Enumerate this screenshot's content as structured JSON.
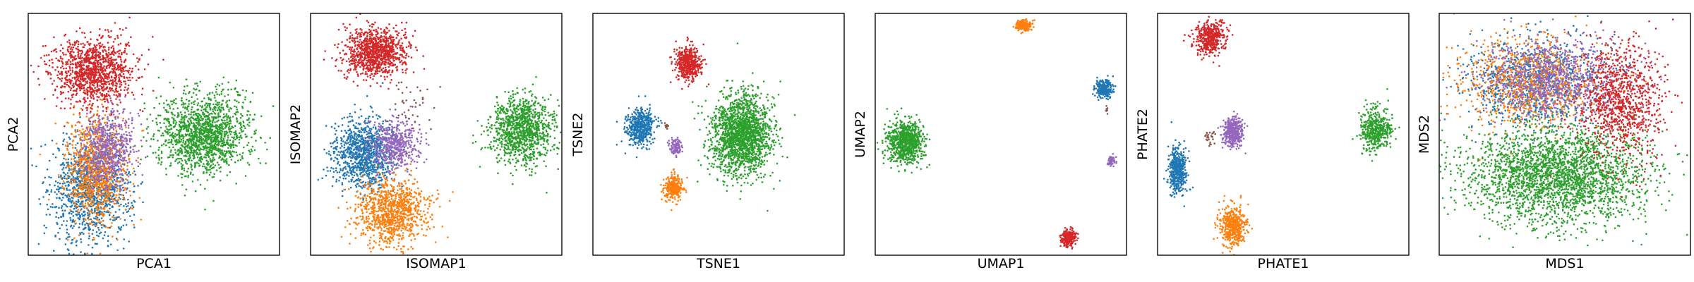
{
  "chart_data": [
    {
      "type": "scatter",
      "xlabel": "PCA1",
      "ylabel": "PCA2",
      "grid": false,
      "legend": "none",
      "clusters": [
        {
          "color": "#1f77b4",
          "center": [
            0.25,
            0.27
          ],
          "spread": [
            0.08,
            0.11
          ],
          "points": 1150
        },
        {
          "color": "#ff7f0e",
          "center": [
            0.27,
            0.36
          ],
          "spread": [
            0.06,
            0.11
          ],
          "points": 950
        },
        {
          "color": "#9467bd",
          "center": [
            0.32,
            0.44
          ],
          "spread": [
            0.05,
            0.09
          ],
          "points": 600
        },
        {
          "color": "#2ca02c",
          "center": [
            0.7,
            0.5
          ],
          "spread": [
            0.09,
            0.08
          ],
          "points": 1500
        },
        {
          "color": "#d62728",
          "center": [
            0.26,
            0.76
          ],
          "spread": [
            0.08,
            0.07
          ],
          "points": 1150
        }
      ]
    },
    {
      "type": "scatter",
      "xlabel": "ISOMAP1",
      "ylabel": "ISOMAP2",
      "grid": false,
      "legend": "none",
      "clusters": [
        {
          "color": "#d62728",
          "center": [
            0.26,
            0.84
          ],
          "spread": [
            0.06,
            0.05
          ],
          "points": 1000
        },
        {
          "color": "#1f77b4",
          "center": [
            0.21,
            0.42
          ],
          "spread": [
            0.06,
            0.07
          ],
          "points": 1000
        },
        {
          "color": "#9467bd",
          "center": [
            0.33,
            0.46
          ],
          "spread": [
            0.05,
            0.05
          ],
          "points": 500
        },
        {
          "color": "#ff7f0e",
          "center": [
            0.32,
            0.18
          ],
          "spread": [
            0.07,
            0.07
          ],
          "points": 1000
        },
        {
          "color": "#2ca02c",
          "center": [
            0.84,
            0.52
          ],
          "spread": [
            0.06,
            0.07
          ],
          "points": 1100
        },
        {
          "color": "#8c564b",
          "center": [
            0.4,
            0.6
          ],
          "spread": [
            0.05,
            0.06
          ],
          "points": 40
        }
      ]
    },
    {
      "type": "scatter",
      "xlabel": "TSNE1",
      "ylabel": "TSNE2",
      "grid": false,
      "legend": "none",
      "clusters": [
        {
          "color": "#d62728",
          "center": [
            0.38,
            0.79
          ],
          "spread": [
            0.025,
            0.035
          ],
          "points": 500
        },
        {
          "color": "#1f77b4",
          "center": [
            0.19,
            0.53
          ],
          "spread": [
            0.028,
            0.038
          ],
          "points": 500
        },
        {
          "color": "#9467bd",
          "center": [
            0.33,
            0.45
          ],
          "spread": [
            0.012,
            0.018
          ],
          "points": 120
        },
        {
          "color": "#ff7f0e",
          "center": [
            0.32,
            0.28
          ],
          "spread": [
            0.018,
            0.025
          ],
          "points": 300
        },
        {
          "color": "#2ca02c",
          "center": [
            0.59,
            0.5
          ],
          "spread": [
            0.06,
            0.085
          ],
          "points": 1800
        },
        {
          "color": "#8c564b",
          "center": [
            0.29,
            0.53
          ],
          "spread": [
            0.005,
            0.008
          ],
          "points": 12
        }
      ]
    },
    {
      "type": "scatter",
      "xlabel": "UMAP1",
      "ylabel": "UMAP2",
      "grid": false,
      "legend": "none",
      "clusters": [
        {
          "color": "#ff7f0e",
          "center": [
            0.59,
            0.95
          ],
          "spread": [
            0.015,
            0.012
          ],
          "points": 200
        },
        {
          "color": "#1f77b4",
          "center": [
            0.91,
            0.69
          ],
          "spread": [
            0.017,
            0.018
          ],
          "points": 250
        },
        {
          "color": "#9467bd",
          "center": [
            0.94,
            0.39
          ],
          "spread": [
            0.01,
            0.01
          ],
          "points": 60
        },
        {
          "color": "#2ca02c",
          "center": [
            0.12,
            0.47
          ],
          "spread": [
            0.035,
            0.045
          ],
          "points": 800
        },
        {
          "color": "#d62728",
          "center": [
            0.77,
            0.07
          ],
          "spread": [
            0.015,
            0.018
          ],
          "points": 200
        },
        {
          "color": "#8c564b",
          "center": [
            0.92,
            0.6
          ],
          "spread": [
            0.003,
            0.01
          ],
          "points": 10
        }
      ]
    },
    {
      "type": "scatter",
      "xlabel": "PHATE1",
      "ylabel": "PHATE2",
      "grid": false,
      "legend": "none",
      "clusters": [
        {
          "color": "#d62728",
          "center": [
            0.21,
            0.9
          ],
          "spread": [
            0.03,
            0.035
          ],
          "points": 450
        },
        {
          "color": "#9467bd",
          "center": [
            0.3,
            0.51
          ],
          "spread": [
            0.02,
            0.03
          ],
          "points": 400
        },
        {
          "color": "#1f77b4",
          "center": [
            0.08,
            0.35
          ],
          "spread": [
            0.018,
            0.045
          ],
          "points": 450
        },
        {
          "color": "#ff7f0e",
          "center": [
            0.3,
            0.12
          ],
          "spread": [
            0.025,
            0.04
          ],
          "points": 450
        },
        {
          "color": "#2ca02c",
          "center": [
            0.87,
            0.52
          ],
          "spread": [
            0.03,
            0.045
          ],
          "points": 450
        },
        {
          "color": "#8c564b",
          "center": [
            0.21,
            0.49
          ],
          "spread": [
            0.012,
            0.015
          ],
          "points": 25
        }
      ]
    },
    {
      "type": "scatter",
      "xlabel": "MDS1",
      "ylabel": "MDS2",
      "grid": false,
      "legend": "none",
      "clusters": [
        {
          "color": "#2ca02c",
          "center": [
            0.47,
            0.33
          ],
          "spread": [
            0.18,
            0.1
          ],
          "points": 2600
        },
        {
          "color": "#1f77b4",
          "center": [
            0.38,
            0.72
          ],
          "spread": [
            0.14,
            0.09
          ],
          "points": 900
        },
        {
          "color": "#ff7f0e",
          "center": [
            0.35,
            0.72
          ],
          "spread": [
            0.14,
            0.09
          ],
          "points": 900
        },
        {
          "color": "#9467bd",
          "center": [
            0.45,
            0.73
          ],
          "spread": [
            0.14,
            0.08
          ],
          "points": 900
        },
        {
          "color": "#d62728",
          "center": [
            0.72,
            0.64
          ],
          "spread": [
            0.08,
            0.12
          ],
          "points": 1000
        }
      ]
    }
  ]
}
